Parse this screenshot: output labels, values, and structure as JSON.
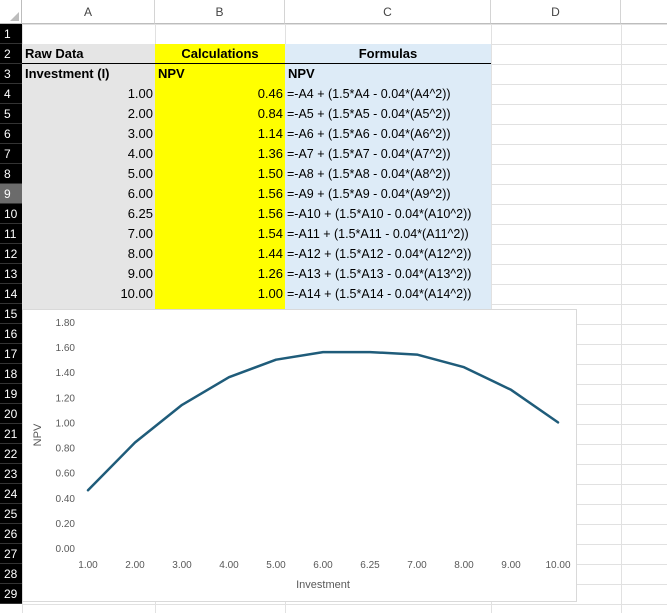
{
  "columns": [
    "A",
    "B",
    "C",
    "D"
  ],
  "rows": [
    "1",
    "2",
    "3",
    "4",
    "5",
    "6",
    "7",
    "8",
    "9",
    "10",
    "11",
    "12",
    "13",
    "14",
    "15",
    "16",
    "17",
    "18",
    "19",
    "20",
    "21",
    "22",
    "23",
    "24",
    "25",
    "26",
    "27",
    "28",
    "29"
  ],
  "headers": {
    "raw_data": "Raw Data",
    "calculations": "Calculations",
    "formulas": "Formulas",
    "investment": "Investment (I)",
    "npv_b": "NPV",
    "npv_c": "NPV"
  },
  "table": [
    {
      "inv": "1.00",
      "npv": "0.46",
      "formula": "=-A4 + (1.5*A4 - 0.04*(A4^2))"
    },
    {
      "inv": "2.00",
      "npv": "0.84",
      "formula": "=-A5 + (1.5*A5 - 0.04*(A5^2))"
    },
    {
      "inv": "3.00",
      "npv": "1.14",
      "formula": "=-A6 + (1.5*A6 - 0.04*(A6^2))"
    },
    {
      "inv": "4.00",
      "npv": "1.36",
      "formula": "=-A7 + (1.5*A7 - 0.04*(A7^2))"
    },
    {
      "inv": "5.00",
      "npv": "1.50",
      "formula": "=-A8 + (1.5*A8 - 0.04*(A8^2))"
    },
    {
      "inv": "6.00",
      "npv": "1.56",
      "formula": "=-A9 + (1.5*A9 - 0.04*(A9^2))"
    },
    {
      "inv": "6.25",
      "npv": "1.56",
      "formula": "=-A10 + (1.5*A10 - 0.04*(A10^2))"
    },
    {
      "inv": "7.00",
      "npv": "1.54",
      "formula": "=-A11 + (1.5*A11 - 0.04*(A11^2))"
    },
    {
      "inv": "8.00",
      "npv": "1.44",
      "formula": "=-A12 + (1.5*A12 - 0.04*(A12^2))"
    },
    {
      "inv": "9.00",
      "npv": "1.26",
      "formula": "=-A13 + (1.5*A13 - 0.04*(A13^2))"
    },
    {
      "inv": "10.00",
      "npv": "1.00",
      "formula": "=-A14 + (1.5*A14 - 0.04*(A14^2))"
    }
  ],
  "selected_row": "9",
  "colors": {
    "raw_fill": "#e5e5e5",
    "calc_fill": "#ffff00",
    "formula_fill": "#ddebf7",
    "line": "#1f5c7a",
    "row_header_bg": "#000000"
  },
  "chart_data": {
    "type": "line",
    "categories": [
      "1.00",
      "2.00",
      "3.00",
      "4.00",
      "5.00",
      "6.00",
      "6.25",
      "7.00",
      "8.00",
      "9.00",
      "10.00"
    ],
    "series": [
      {
        "values": [
          0.46,
          0.84,
          1.14,
          1.36,
          1.5,
          1.56,
          1.56,
          1.54,
          1.44,
          1.26,
          1.0
        ]
      }
    ],
    "xlabel": "Investment",
    "ylabel": "NPV",
    "ylim": [
      0,
      1.8
    ],
    "yticks": [
      "0.00",
      "0.20",
      "0.40",
      "0.60",
      "0.80",
      "1.00",
      "1.20",
      "1.40",
      "1.60",
      "1.80"
    ],
    "grid": false,
    "legend": "none"
  }
}
